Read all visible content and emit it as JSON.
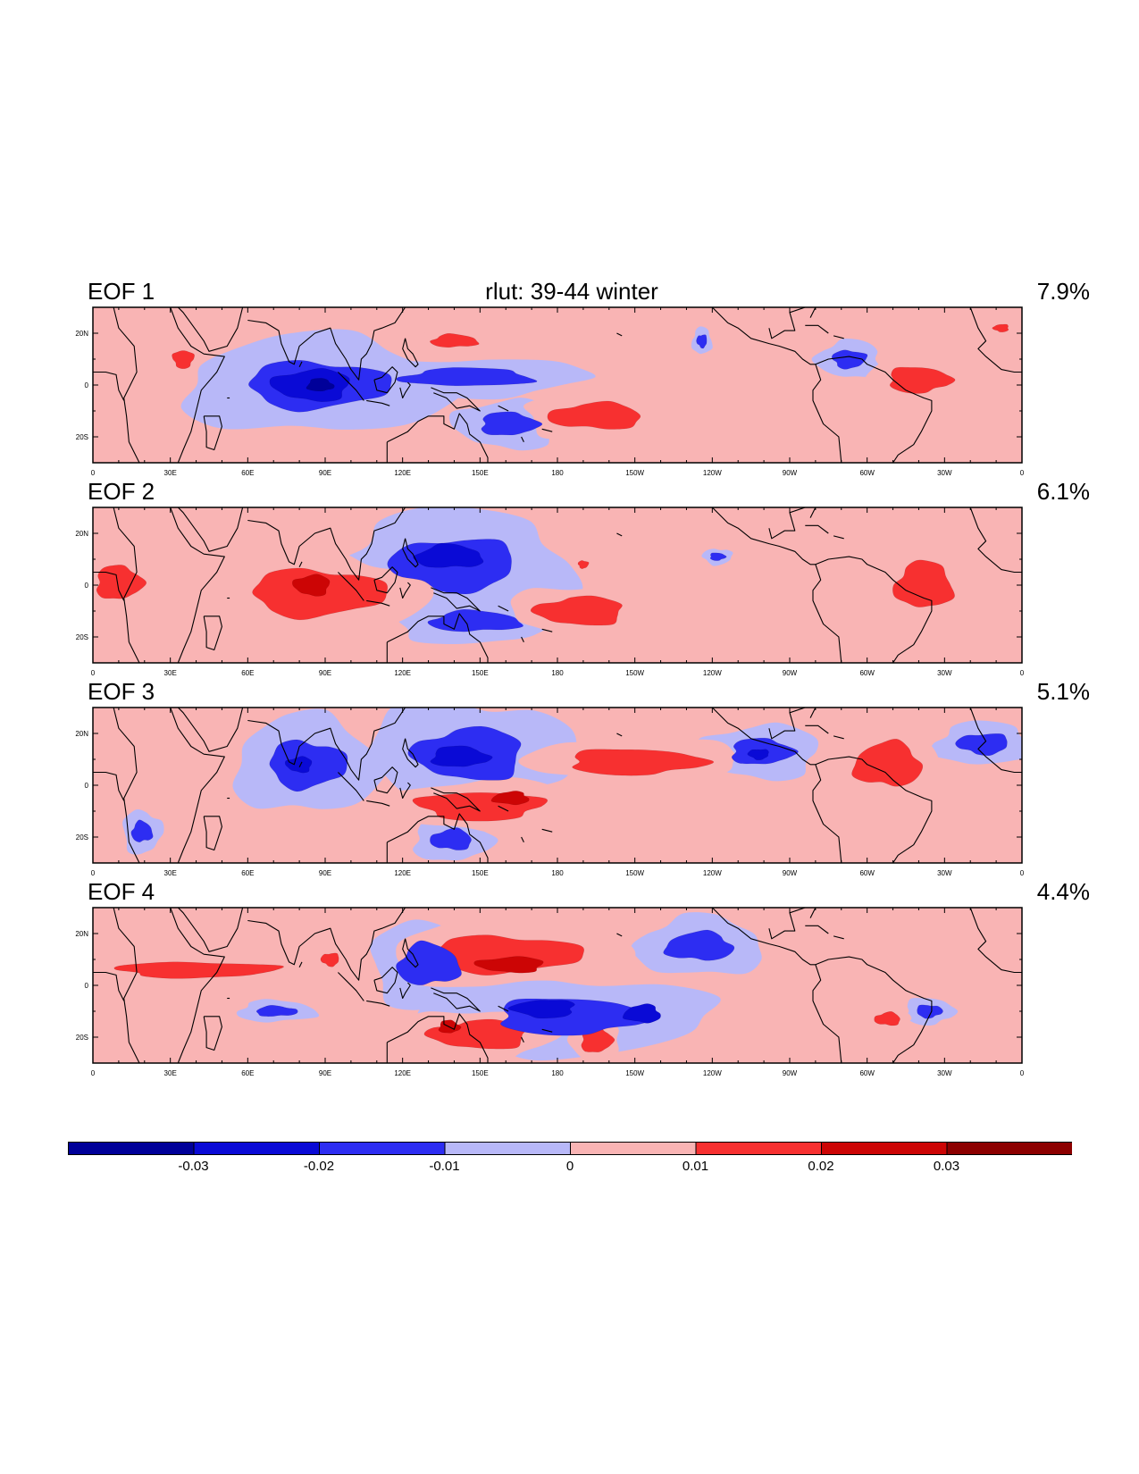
{
  "chart_data": {
    "type": "heatmap",
    "title": "rlut: 39-44 winter",
    "xlabel": "",
    "ylabel": "",
    "xlim": [
      0,
      360
    ],
    "ylim": [
      -30,
      30
    ],
    "x_tick_labels": [
      "0",
      "30E",
      "60E",
      "90E",
      "120E",
      "150E",
      "180",
      "150W",
      "120W",
      "90W",
      "60W",
      "30W",
      "0"
    ],
    "y_tick_labels": [
      "20N",
      "0",
      "20S"
    ],
    "colorbar": {
      "levels": [
        -0.03,
        -0.02,
        -0.01,
        0,
        0.01,
        0.02,
        0.03
      ],
      "labels": [
        "-0.03",
        "-0.02",
        "-0.01",
        "0",
        "0.01",
        "0.02",
        "0.03"
      ],
      "colors": [
        "#000099",
        "#0a0ad6",
        "#2d2df2",
        "#b8b8f8",
        "#f9b4b4",
        "#f73030",
        "#cc0505",
        "#8c0000"
      ]
    },
    "panels": [
      {
        "label": "EOF 1",
        "variance": "7.9%",
        "features": [
          {
            "sign": "neg",
            "level": 2,
            "lon": 87,
            "lat": 0,
            "w": 55,
            "h": 18
          },
          {
            "sign": "neg",
            "level": 3,
            "lon": 85,
            "lat": 0,
            "w": 30,
            "h": 12
          },
          {
            "sign": "neg",
            "level": 4,
            "lon": 88,
            "lat": 0,
            "w": 10,
            "h": 5
          },
          {
            "sign": "neg",
            "level": 2,
            "lon": 145,
            "lat": 3,
            "w": 50,
            "h": 7
          },
          {
            "sign": "neg",
            "level": 2,
            "lon": 161,
            "lat": -15,
            "w": 22,
            "h": 9
          },
          {
            "sign": "neg",
            "level": 2,
            "lon": 293,
            "lat": 10,
            "w": 13,
            "h": 7
          },
          {
            "sign": "neg",
            "level": 2,
            "lon": 236,
            "lat": 17,
            "w": 4,
            "h": 5
          },
          {
            "sign": "pos",
            "level": 2,
            "lon": 195,
            "lat": -12,
            "w": 36,
            "h": 10
          },
          {
            "sign": "pos",
            "level": 2,
            "lon": 140,
            "lat": 17,
            "w": 18,
            "h": 5
          },
          {
            "sign": "pos",
            "level": 2,
            "lon": 320,
            "lat": 2,
            "w": 24,
            "h": 10
          },
          {
            "sign": "pos",
            "level": 2,
            "lon": 35,
            "lat": 10,
            "w": 8,
            "h": 7
          },
          {
            "sign": "pos",
            "level": 2,
            "lon": 352,
            "lat": 22,
            "w": 6,
            "h": 3
          }
        ]
      },
      {
        "label": "EOF 2",
        "variance": "6.1%",
        "features": [
          {
            "sign": "pos",
            "level": 2,
            "lon": 87,
            "lat": -3,
            "w": 52,
            "h": 18
          },
          {
            "sign": "pos",
            "level": 3,
            "lon": 85,
            "lat": 0,
            "w": 14,
            "h": 8
          },
          {
            "sign": "pos",
            "level": 2,
            "lon": 189,
            "lat": -10,
            "w": 34,
            "h": 11
          },
          {
            "sign": "pos",
            "level": 2,
            "lon": 322,
            "lat": 0,
            "w": 22,
            "h": 18
          },
          {
            "sign": "pos",
            "level": 2,
            "lon": 10,
            "lat": 1,
            "w": 18,
            "h": 13
          },
          {
            "sign": "pos",
            "level": 2,
            "lon": 190,
            "lat": 8,
            "w": 4,
            "h": 3
          },
          {
            "sign": "neg",
            "level": 2,
            "lon": 140,
            "lat": 8,
            "w": 48,
            "h": 20
          },
          {
            "sign": "neg",
            "level": 3,
            "lon": 138,
            "lat": 11,
            "w": 26,
            "h": 9
          },
          {
            "sign": "neg",
            "level": 2,
            "lon": 148,
            "lat": -14,
            "w": 35,
            "h": 8
          },
          {
            "sign": "neg",
            "level": 2,
            "lon": 242,
            "lat": 11,
            "w": 6,
            "h": 3
          }
        ]
      },
      {
        "label": "EOF 3",
        "variance": "5.1%",
        "features": [
          {
            "sign": "neg",
            "level": 2,
            "lon": 83,
            "lat": 8,
            "w": 30,
            "h": 18
          },
          {
            "sign": "neg",
            "level": 3,
            "lon": 80,
            "lat": 8,
            "w": 10,
            "h": 6
          },
          {
            "sign": "neg",
            "level": 2,
            "lon": 146,
            "lat": 12,
            "w": 42,
            "h": 20
          },
          {
            "sign": "neg",
            "level": 3,
            "lon": 142,
            "lat": 11,
            "w": 22,
            "h": 8
          },
          {
            "sign": "neg",
            "level": 2,
            "lon": 259,
            "lat": 13,
            "w": 24,
            "h": 10
          },
          {
            "sign": "neg",
            "level": 3,
            "lon": 258,
            "lat": 12,
            "w": 8,
            "h": 4
          },
          {
            "sign": "neg",
            "level": 2,
            "lon": 345,
            "lat": 16,
            "w": 20,
            "h": 8
          },
          {
            "sign": "neg",
            "level": 2,
            "lon": 139,
            "lat": -21,
            "w": 16,
            "h": 8
          },
          {
            "sign": "neg",
            "level": 2,
            "lon": 19,
            "lat": -18,
            "w": 8,
            "h": 8
          },
          {
            "sign": "pos",
            "level": 2,
            "lon": 210,
            "lat": 9,
            "w": 52,
            "h": 10
          },
          {
            "sign": "pos",
            "level": 2,
            "lon": 150,
            "lat": -8,
            "w": 48,
            "h": 11
          },
          {
            "sign": "pos",
            "level": 3,
            "lon": 162,
            "lat": -5,
            "w": 14,
            "h": 5
          },
          {
            "sign": "pos",
            "level": 2,
            "lon": 308,
            "lat": 8,
            "w": 26,
            "h": 17
          }
        ]
      },
      {
        "label": "EOF 4",
        "variance": "4.4%",
        "features": [
          {
            "sign": "pos",
            "level": 2,
            "lon": 160,
            "lat": 12,
            "w": 58,
            "h": 14
          },
          {
            "sign": "pos",
            "level": 3,
            "lon": 162,
            "lat": 8,
            "w": 26,
            "h": 6
          },
          {
            "sign": "pos",
            "level": 2,
            "lon": 150,
            "lat": -19,
            "w": 38,
            "h": 11
          },
          {
            "sign": "pos",
            "level": 3,
            "lon": 138,
            "lat": -16,
            "w": 8,
            "h": 5
          },
          {
            "sign": "pos",
            "level": 2,
            "lon": 195,
            "lat": -21,
            "w": 12,
            "h": 10
          },
          {
            "sign": "pos",
            "level": 2,
            "lon": 40,
            "lat": 6,
            "w": 62,
            "h": 6
          },
          {
            "sign": "pos",
            "level": 2,
            "lon": 92,
            "lat": 10,
            "w": 7,
            "h": 5
          },
          {
            "sign": "pos",
            "level": 2,
            "lon": 308,
            "lat": -13,
            "w": 10,
            "h": 5
          },
          {
            "sign": "neg",
            "level": 2,
            "lon": 130,
            "lat": 8,
            "w": 24,
            "h": 16
          },
          {
            "sign": "neg",
            "level": 2,
            "lon": 185,
            "lat": -12,
            "w": 58,
            "h": 14
          },
          {
            "sign": "neg",
            "level": 3,
            "lon": 175,
            "lat": -9,
            "w": 24,
            "h": 7
          },
          {
            "sign": "neg",
            "level": 3,
            "lon": 213,
            "lat": -11,
            "w": 14,
            "h": 7
          },
          {
            "sign": "neg",
            "level": 2,
            "lon": 235,
            "lat": 15,
            "w": 26,
            "h": 11
          },
          {
            "sign": "neg",
            "level": 2,
            "lon": 71,
            "lat": -10,
            "w": 16,
            "h": 4
          },
          {
            "sign": "neg",
            "level": 2,
            "lon": 324,
            "lat": -10,
            "w": 10,
            "h": 5
          }
        ]
      }
    ]
  }
}
